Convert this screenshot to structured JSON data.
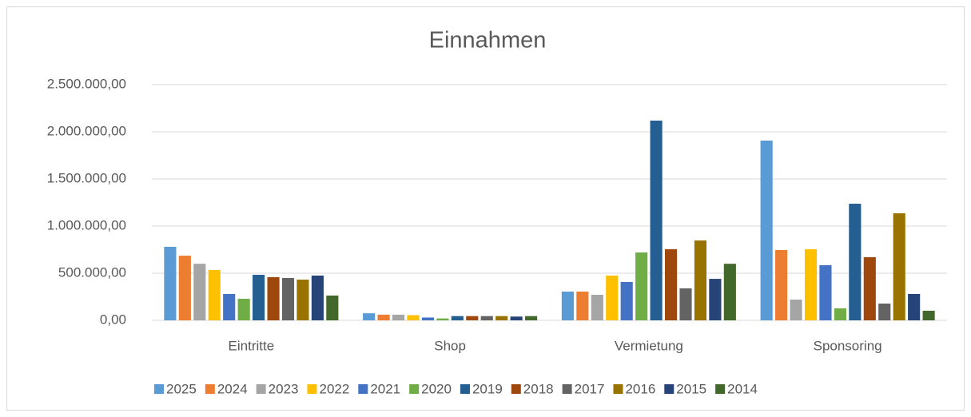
{
  "chart_data": {
    "type": "bar",
    "title": "Einnahmen",
    "categories": [
      "Eintritte",
      "Shop",
      "Vermietung",
      "Sponsoring"
    ],
    "series": [
      {
        "name": "2025",
        "color": "#5b9bd5",
        "values": [
          780000,
          75000,
          305000,
          1907000
        ]
      },
      {
        "name": "2024",
        "color": "#ed7d31",
        "values": [
          686000,
          60000,
          305000,
          746000
        ]
      },
      {
        "name": "2023",
        "color": "#a5a5a5",
        "values": [
          600000,
          60000,
          271000,
          220000
        ]
      },
      {
        "name": "2022",
        "color": "#ffc000",
        "values": [
          534000,
          55000,
          475000,
          754000
        ]
      },
      {
        "name": "2021",
        "color": "#4472c4",
        "values": [
          280000,
          30000,
          407000,
          585000
        ]
      },
      {
        "name": "2020",
        "color": "#70ad47",
        "values": [
          229000,
          20000,
          720000,
          127000
        ]
      },
      {
        "name": "2019",
        "color": "#255e91",
        "values": [
          483000,
          45000,
          2119000,
          1237000
        ]
      },
      {
        "name": "2018",
        "color": "#9e480e",
        "values": [
          458000,
          45000,
          754000,
          670000
        ]
      },
      {
        "name": "2017",
        "color": "#636363",
        "values": [
          449000,
          45000,
          339000,
          178000
        ]
      },
      {
        "name": "2016",
        "color": "#997300",
        "values": [
          432000,
          45000,
          847000,
          1136000
        ]
      },
      {
        "name": "2015",
        "color": "#264478",
        "values": [
          475000,
          40000,
          440000,
          280000
        ]
      },
      {
        "name": "2014",
        "color": "#43682b",
        "values": [
          263000,
          45000,
          600000,
          102000
        ]
      }
    ],
    "ylim": [
      0,
      2500000
    ],
    "yticks": [
      {
        "value": 0,
        "label": "0,00"
      },
      {
        "value": 500000,
        "label": "500.000,00"
      },
      {
        "value": 1000000,
        "label": "1.000.000,00"
      },
      {
        "value": 1500000,
        "label": "1.500.000,00"
      },
      {
        "value": 2000000,
        "label": "2.000.000,00"
      },
      {
        "value": 2500000,
        "label": "2.500.000,00"
      }
    ],
    "grid": true,
    "legend": "bottom"
  }
}
